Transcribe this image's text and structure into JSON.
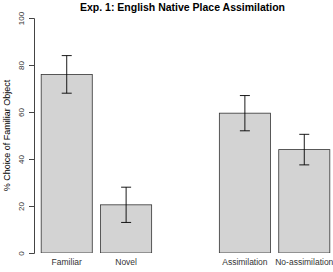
{
  "chart_data": {
    "type": "bar",
    "title": "Exp. 1: English Native Place Assimilation",
    "y_label": "% Choice of Familiar Object",
    "categories": [
      "Familiar",
      "Novel",
      null,
      "Assimilation",
      "No-assimilation"
    ],
    "values": [
      76,
      20.5,
      null,
      59.5,
      44
    ],
    "errors": [
      8,
      7.5,
      null,
      7.5,
      6.5
    ],
    "color": "#d3d3d3",
    "ylim": [
      0,
      100
    ],
    "yticks": [
      0,
      20,
      40,
      60,
      80,
      100
    ],
    "grid": false
  }
}
